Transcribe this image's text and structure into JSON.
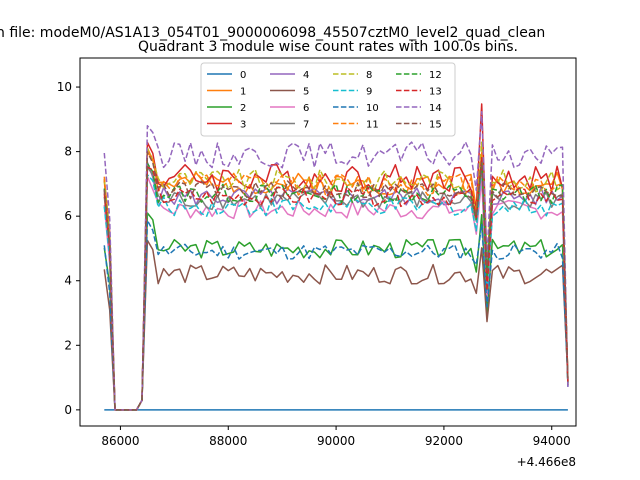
{
  "figure": {
    "suptitle": "n file: modeM0/AS1A13_054T01_9000006098_45507cztM0_level2_quad_clean",
    "title": "Quadrant 3 module wise count rates with 100.0s bins."
  },
  "chart_data": {
    "type": "line",
    "title": "Quadrant 3 module wise count rates with 100.0s bins.",
    "xlabel": "",
    "ylabel": "",
    "x_offset_label": "+4.466e8",
    "xlim": [
      85250,
      94450
    ],
    "ylim": [
      -0.5,
      10.9
    ],
    "xticks": [
      86000,
      88000,
      90000,
      92000,
      94000
    ],
    "xtick_labels": [
      "86000",
      "88000",
      "90000",
      "92000",
      "94000"
    ],
    "yticks": [
      0,
      2,
      4,
      6,
      8,
      10
    ],
    "ytick_labels": [
      "0",
      "2",
      "4",
      "6",
      "8",
      "10"
    ],
    "grid": false,
    "legend_position": "top-center",
    "legend_columns": 4,
    "x_range": [
      85700,
      94300
    ],
    "x_step": 100,
    "series": [
      {
        "name": "0",
        "color": "#1f77b4",
        "dash": "solid",
        "base": 0.0,
        "amp": 0.0,
        "seed": 1
      },
      {
        "name": "1",
        "color": "#ff7f0e",
        "dash": "solid",
        "base": 7.0,
        "amp": 0.35,
        "seed": 2
      },
      {
        "name": "2",
        "color": "#2ca02c",
        "dash": "solid",
        "base": 5.0,
        "amp": 0.3,
        "seed": 3
      },
      {
        "name": "3",
        "color": "#d62728",
        "dash": "solid",
        "base": 7.2,
        "amp": 0.45,
        "seed": 4
      },
      {
        "name": "4",
        "color": "#9467bd",
        "dash": "solid",
        "base": 6.6,
        "amp": 0.3,
        "seed": 5
      },
      {
        "name": "5",
        "color": "#8c564b",
        "dash": "solid",
        "base": 4.2,
        "amp": 0.3,
        "seed": 6
      },
      {
        "name": "6",
        "color": "#e377c2",
        "dash": "solid",
        "base": 6.2,
        "amp": 0.3,
        "seed": 7
      },
      {
        "name": "7",
        "color": "#7f7f7f",
        "dash": "solid",
        "base": 6.5,
        "amp": 0.3,
        "seed": 8
      },
      {
        "name": "8",
        "color": "#bcbd22",
        "dash": "dashed",
        "base": 7.1,
        "amp": 0.35,
        "seed": 9
      },
      {
        "name": "9",
        "color": "#17becf",
        "dash": "dashed",
        "base": 6.3,
        "amp": 0.3,
        "seed": 10
      },
      {
        "name": "10",
        "color": "#1f77b4",
        "dash": "dashed",
        "base": 4.9,
        "amp": 0.25,
        "seed": 11
      },
      {
        "name": "11",
        "color": "#ff7f0e",
        "dash": "dashed",
        "base": 7.0,
        "amp": 0.35,
        "seed": 12
      },
      {
        "name": "12",
        "color": "#2ca02c",
        "dash": "dashed",
        "base": 6.7,
        "amp": 0.3,
        "seed": 13
      },
      {
        "name": "13",
        "color": "#d62728",
        "dash": "dashed",
        "base": 6.6,
        "amp": 0.3,
        "seed": 14
      },
      {
        "name": "14",
        "color": "#9467bd",
        "dash": "dashed",
        "base": 7.9,
        "amp": 0.4,
        "seed": 15
      },
      {
        "name": "15",
        "color": "#8c564b",
        "dash": "dashed",
        "base": 6.8,
        "amp": 0.3,
        "seed": 16
      }
    ]
  }
}
